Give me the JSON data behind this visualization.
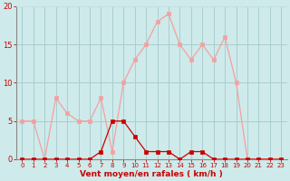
{
  "x": [
    0,
    1,
    2,
    3,
    4,
    5,
    6,
    7,
    8,
    9,
    10,
    11,
    12,
    13,
    14,
    15,
    16,
    17,
    18,
    19,
    20,
    21,
    22,
    23
  ],
  "rafales": [
    5,
    5,
    0,
    8,
    6,
    5,
    5,
    8,
    1,
    10,
    13,
    15,
    18,
    19,
    15,
    13,
    15,
    13,
    16,
    10,
    0,
    0,
    0,
    0
  ],
  "moyen": [
    0,
    0,
    0,
    0,
    0,
    0,
    0,
    1,
    5,
    5,
    3,
    1,
    1,
    1,
    0,
    1,
    1,
    0,
    0,
    0,
    0,
    0,
    0,
    0
  ],
  "bg_color": "#ceeaea",
  "grid_color": "#aacece",
  "line_color_rafales": "#f5a0a0",
  "line_color_moyen": "#cc0000",
  "xlabel": "Vent moyen/en rafales ( km/h )",
  "xlabel_color": "#cc0000",
  "tick_color": "#cc0000",
  "axis_color": "#888888",
  "ylim": [
    0,
    20
  ],
  "xlim": [
    -0.5,
    23.5
  ],
  "yticks": [
    0,
    5,
    10,
    15,
    20
  ],
  "xticks": [
    0,
    1,
    2,
    3,
    4,
    5,
    6,
    7,
    8,
    9,
    10,
    11,
    12,
    13,
    14,
    15,
    16,
    17,
    18,
    19,
    20,
    21,
    22,
    23
  ]
}
